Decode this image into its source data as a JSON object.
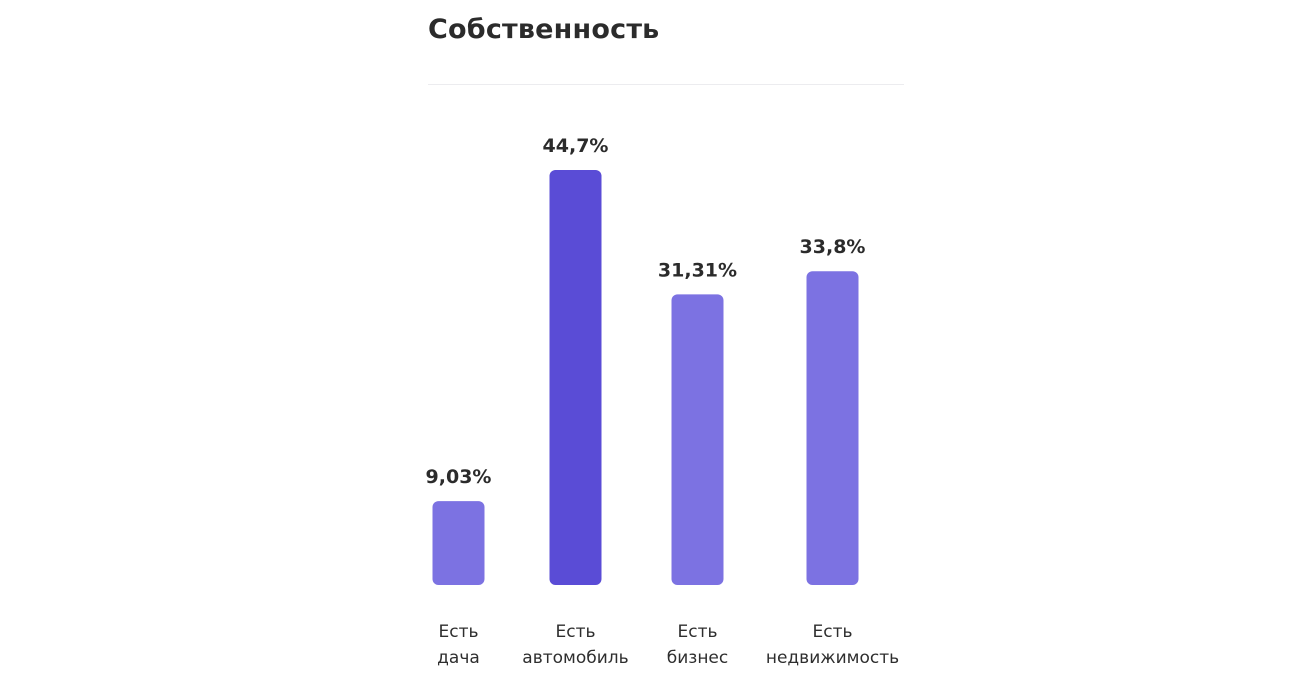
{
  "card": {
    "title": "Собственность"
  },
  "colors": {
    "bar": "#7c72e2",
    "bar_highlight": "#5a4cd6",
    "text": "#2b2b2b",
    "divider": "#ececef"
  },
  "chart_data": {
    "type": "bar",
    "title": "Собственность",
    "xlabel": "",
    "ylabel": "",
    "grid": false,
    "categories": [
      [
        "Есть",
        "дача"
      ],
      [
        "Есть",
        "автомобиль"
      ],
      [
        "Есть",
        "бизнес"
      ],
      [
        "Есть",
        "недвижимость"
      ]
    ],
    "values": [
      9.03,
      44.7,
      31.31,
      33.8
    ],
    "value_labels": [
      "9,03%",
      "44,7%",
      "31,31%",
      "33,8%"
    ],
    "highlight_index": 1,
    "ylim": [
      0,
      44.7
    ]
  }
}
